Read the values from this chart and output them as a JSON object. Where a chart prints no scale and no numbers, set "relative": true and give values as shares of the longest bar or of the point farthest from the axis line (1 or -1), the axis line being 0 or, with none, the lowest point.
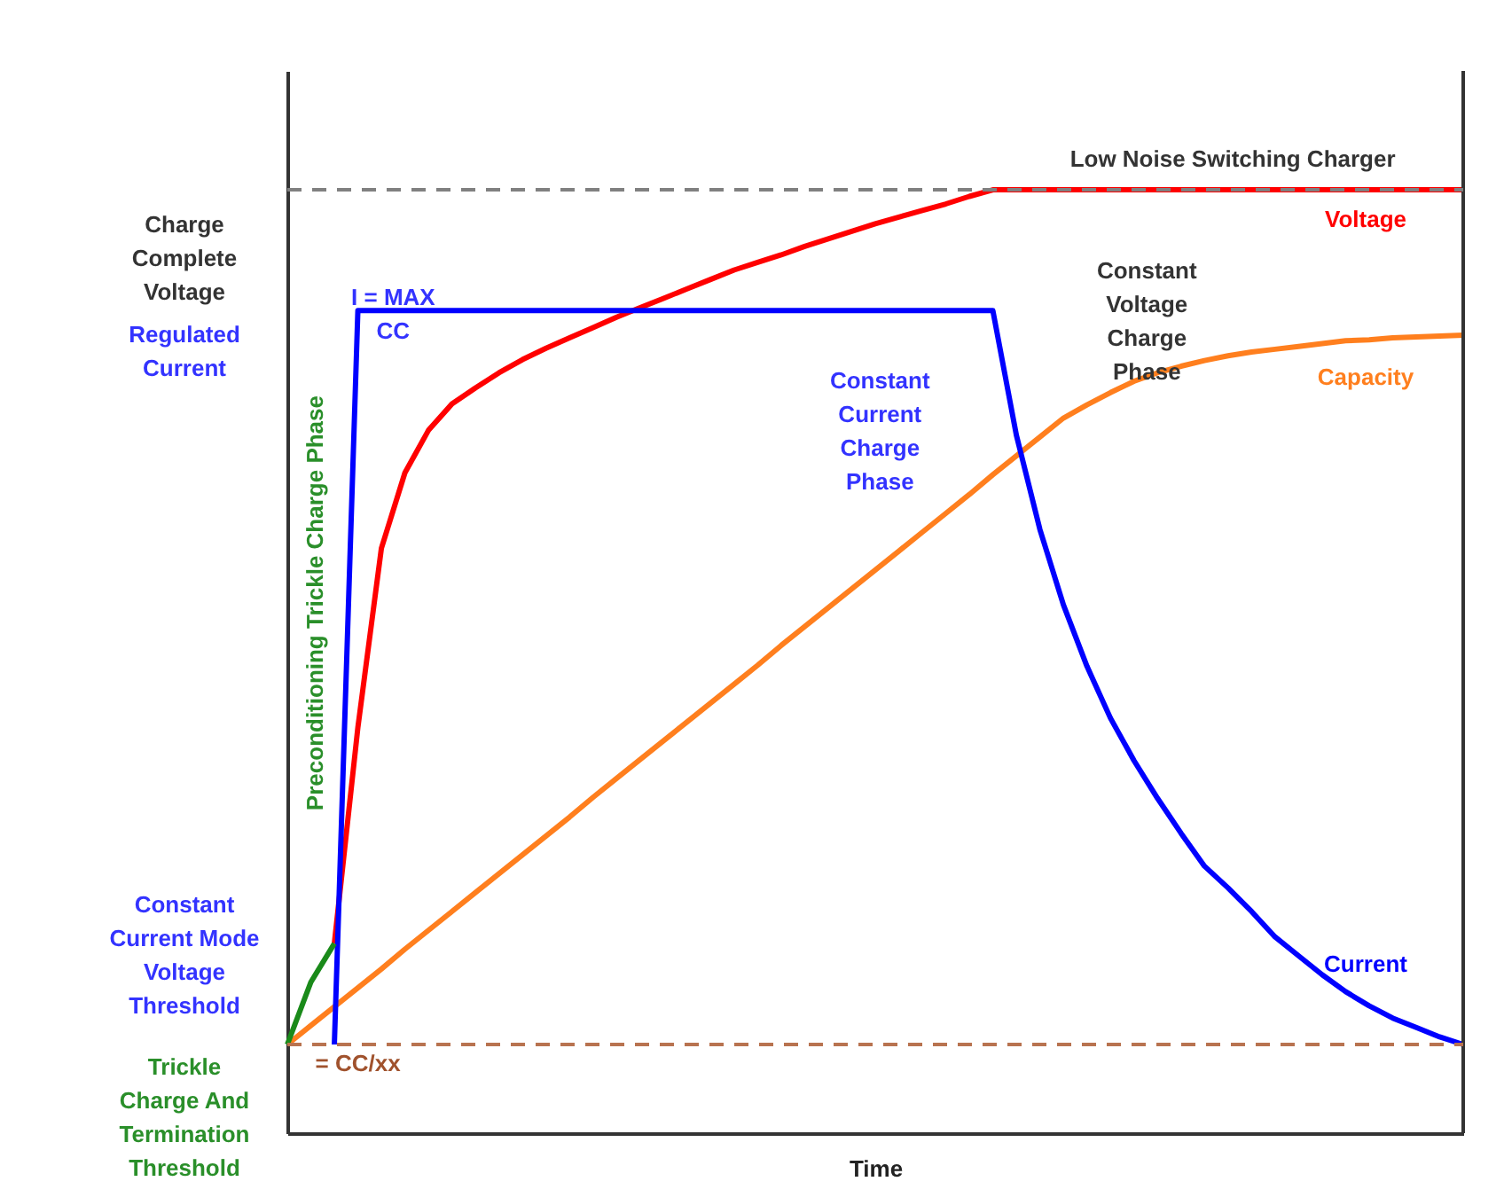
{
  "chart_data": {
    "type": "line",
    "relative": true,
    "xlabel": "Time",
    "marker": "none",
    "line_style": "solid",
    "categories": [
      null,
      null,
      null,
      null,
      null,
      null,
      null,
      null,
      null,
      null,
      null,
      null,
      null,
      null,
      null,
      null,
      null,
      null,
      null,
      null,
      null,
      null,
      null,
      null,
      null,
      null,
      null,
      null,
      null,
      null,
      null,
      null,
      null,
      null,
      null,
      null,
      null,
      null,
      null,
      null,
      null,
      null,
      null,
      null,
      null,
      null,
      null,
      null,
      null,
      null,
      null
    ],
    "series": [
      {
        "name": "Voltage",
        "color": "#ff0000",
        "values": [
          null,
          null,
          0.201,
          0.43,
          0.62,
          0.7,
          0.745,
          0.773,
          0.79,
          0.806,
          0.82,
          0.832,
          0.843,
          0.854,
          0.865,
          0.875,
          0.885,
          0.895,
          0.905,
          0.915,
          0.923,
          0.931,
          0.94,
          0.948,
          0.956,
          0.964,
          0.971,
          0.978,
          0.985,
          0.993,
          1.0,
          1.0,
          1.0,
          1.0,
          1.0,
          1.0,
          1.0,
          1.0,
          1.0,
          1.0,
          1.0,
          1.0,
          1.0,
          1.0,
          1.0,
          1.0,
          1.0,
          1.0,
          1.0,
          1.0,
          1.0
        ]
      },
      {
        "name": "Capacity",
        "color": "#ff7f1e",
        "values": [
          0.094,
          0.114,
          0.134,
          0.154,
          0.174,
          0.195,
          0.215,
          0.235,
          0.255,
          0.275,
          0.295,
          0.315,
          0.335,
          0.356,
          0.376,
          0.396,
          0.416,
          0.436,
          0.456,
          0.476,
          0.496,
          0.517,
          0.537,
          0.557,
          0.577,
          0.597,
          0.617,
          0.637,
          0.657,
          0.677,
          0.698,
          0.718,
          0.738,
          0.758,
          0.772,
          0.785,
          0.797,
          0.806,
          0.813,
          0.819,
          0.824,
          0.828,
          0.831,
          0.834,
          0.837,
          0.84,
          0.841,
          0.843,
          0.844,
          0.845,
          0.846
        ]
      },
      {
        "name": "Current",
        "color": "#0000ff",
        "values": [
          null,
          null,
          0.094,
          0.872,
          0.872,
          0.872,
          0.872,
          0.872,
          0.872,
          0.872,
          0.872,
          0.872,
          0.872,
          0.872,
          0.872,
          0.872,
          0.872,
          0.872,
          0.872,
          0.872,
          0.872,
          0.872,
          0.872,
          0.872,
          0.872,
          0.872,
          0.872,
          0.872,
          0.872,
          0.872,
          0.872,
          0.74,
          0.64,
          0.56,
          0.495,
          0.44,
          0.395,
          0.355,
          0.318,
          0.283,
          0.26,
          0.235,
          0.208,
          0.188,
          0.168,
          0.15,
          0.135,
          0.122,
          0.112,
          0.102,
          0.094
        ]
      },
      {
        "color": "#1a8a1a",
        "values": [
          0.094,
          0.16,
          0.201,
          null,
          null,
          null,
          null,
          null,
          null,
          null,
          null,
          null,
          null,
          null,
          null,
          null,
          null,
          null,
          null,
          null,
          null,
          null,
          null,
          null,
          null,
          null,
          null,
          null,
          null,
          null,
          null,
          null,
          null,
          null,
          null,
          null,
          null,
          null,
          null,
          null,
          null,
          null,
          null,
          null,
          null,
          null,
          null,
          null,
          null,
          null,
          null
        ]
      }
    ],
    "ref_lines": [
      {
        "axis": "y",
        "value": 1.0,
        "color": "#808080",
        "line_style": "dashed"
      },
      {
        "axis": "y",
        "value": 0.094,
        "color": "#b87350",
        "line_style": "dashed"
      }
    ],
    "annotations": [
      "Charge\nComplete\nVoltage",
      "Regulated\nCurrent",
      "Constant\nCurrent Mode\nVoltage\nThreshold",
      "Trickle\nCharge And\nTermination\nThreshold",
      "I = MAX\nCC",
      "= CC/xx",
      "Preconditioning Trickle Charge Phase",
      "Constant\nCurrent\nCharge\nPhase",
      "Constant\nVoltage\nCharge\nPhase",
      "Low Noise Switching Charger"
    ]
  }
}
